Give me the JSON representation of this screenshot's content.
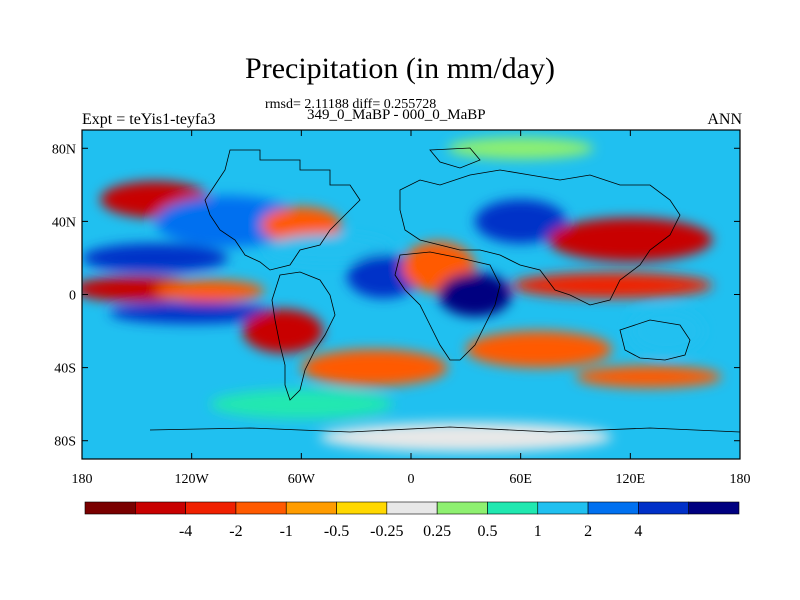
{
  "title": "Precipitation (in mm/day)",
  "subtitle_stats": "rmsd= 2.11188 diff= 0.255728",
  "subtitle_runs": "349_0_MaBP - 000_0_MaBP",
  "left_label": "Expt = teYis1-teyfa3",
  "right_label": "ANN",
  "chart_data": {
    "type": "heatmap",
    "title": "Precipitation (in mm/day)",
    "x_ticks": [
      {
        "value": -180,
        "label": "180"
      },
      {
        "value": -120,
        "label": "120W"
      },
      {
        "value": -60,
        "label": "60W"
      },
      {
        "value": 0,
        "label": "0"
      },
      {
        "value": 60,
        "label": "60E"
      },
      {
        "value": 120,
        "label": "120E"
      },
      {
        "value": 180,
        "label": "180"
      }
    ],
    "y_ticks": [
      {
        "value": 80,
        "label": "80N"
      },
      {
        "value": 40,
        "label": "40N"
      },
      {
        "value": 0,
        "label": "0"
      },
      {
        "value": -40,
        "label": "40S"
      },
      {
        "value": -80,
        "label": "80S"
      }
    ],
    "xlim": [
      -180,
      180
    ],
    "ylim": [
      -90,
      90
    ],
    "colorbar": {
      "colors": [
        "#7a0000",
        "#c80000",
        "#f02000",
        "#ff5a00",
        "#ff9c00",
        "#ffd800",
        "#e8e8e8",
        "#8ef070",
        "#20e8b0",
        "#20c0f0",
        "#0070f0",
        "#0030c8",
        "#000080"
      ],
      "labels": [
        "-4",
        "-2",
        "-1",
        "-0.5",
        "-0.25",
        "0.25",
        "0.5",
        "1",
        "2",
        "4"
      ]
    },
    "regions": [
      {
        "lon": -140,
        "lat": 52,
        "rx": 30,
        "ry": 10,
        "color": "#c80000"
      },
      {
        "lon": -100,
        "lat": 40,
        "rx": 40,
        "ry": 14,
        "color": "#0070f0"
      },
      {
        "lon": -140,
        "lat": 20,
        "rx": 40,
        "ry": 8,
        "color": "#0030c8"
      },
      {
        "lon": -60,
        "lat": 38,
        "rx": 22,
        "ry": 10,
        "color": "#ff5a00"
      },
      {
        "lon": -45,
        "lat": 25,
        "rx": 35,
        "ry": 8,
        "color": "#20c0f0"
      },
      {
        "lon": -150,
        "lat": 3,
        "rx": 35,
        "ry": 7,
        "color": "#c80000"
      },
      {
        "lon": -110,
        "lat": 2,
        "rx": 30,
        "ry": 6,
        "color": "#ff5a00"
      },
      {
        "lon": -120,
        "lat": -10,
        "rx": 45,
        "ry": 6,
        "color": "#0030c8"
      },
      {
        "lon": -70,
        "lat": -20,
        "rx": 22,
        "ry": 12,
        "color": "#c80000"
      },
      {
        "lon": -20,
        "lat": -40,
        "rx": 40,
        "ry": 10,
        "color": "#ff5a00"
      },
      {
        "lon": -15,
        "lat": 10,
        "rx": 20,
        "ry": 12,
        "color": "#0030c8"
      },
      {
        "lon": 15,
        "lat": 15,
        "rx": 20,
        "ry": 14,
        "color": "#ff5a00"
      },
      {
        "lon": 35,
        "lat": 0,
        "rx": 20,
        "ry": 12,
        "color": "#000080"
      },
      {
        "lon": 60,
        "lat": 40,
        "rx": 25,
        "ry": 12,
        "color": "#0030c8"
      },
      {
        "lon": 120,
        "lat": 30,
        "rx": 45,
        "ry": 12,
        "color": "#c80000"
      },
      {
        "lon": 110,
        "lat": 5,
        "rx": 55,
        "ry": 7,
        "color": "#f02000"
      },
      {
        "lon": 70,
        "lat": -30,
        "rx": 40,
        "ry": 10,
        "color": "#ff5a00"
      },
      {
        "lon": 140,
        "lat": -20,
        "rx": 20,
        "ry": 12,
        "color": "#20c0f0"
      },
      {
        "lon": 130,
        "lat": -45,
        "rx": 40,
        "ry": 6,
        "color": "#ff5a00"
      },
      {
        "lon": -60,
        "lat": -60,
        "rx": 50,
        "ry": 8,
        "color": "#20e8b0"
      },
      {
        "lon": 30,
        "lat": -78,
        "rx": 80,
        "ry": 8,
        "color": "#e8e8e8"
      },
      {
        "lon": 60,
        "lat": 80,
        "rx": 40,
        "ry": 6,
        "color": "#8ef070"
      }
    ]
  }
}
